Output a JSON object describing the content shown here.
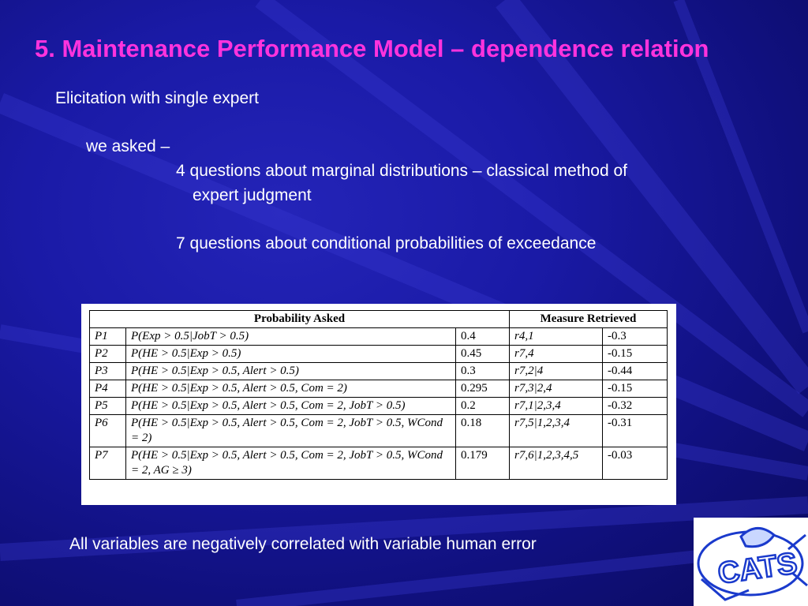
{
  "title": "5. Maintenance Performance Model – dependence relation",
  "subtitle": "Elicitation with single expert",
  "asked_label": "we asked –",
  "question_1_line1": "4 questions about marginal distributions – classical method of",
  "question_1_line2": "expert judgment",
  "question_2": "7 questions about conditional probabilities of exceedance",
  "footer": "All variables are negatively correlated with variable human error",
  "table": {
    "header_left": "Probability Asked",
    "header_right": "Measure Retrieved",
    "rows": [
      {
        "id": "P1",
        "expr": "P(Exp > 0.5|JobT > 0.5)",
        "value": "0.4",
        "measure": "r4,1",
        "coef": "-0.3"
      },
      {
        "id": "P2",
        "expr": "P(HE > 0.5|Exp > 0.5)",
        "value": "0.45",
        "measure": "r7,4",
        "coef": "-0.15"
      },
      {
        "id": "P3",
        "expr": "P(HE > 0.5|Exp > 0.5, Alert > 0.5)",
        "value": "0.3",
        "measure": "r7,2|4",
        "coef": "-0.44"
      },
      {
        "id": "P4",
        "expr": "P(HE > 0.5|Exp > 0.5, Alert > 0.5, Com = 2)",
        "value": "0.295",
        "measure": "r7,3|2,4",
        "coef": "-0.15"
      },
      {
        "id": "P5",
        "expr": "P(HE > 0.5|Exp > 0.5, Alert > 0.5, Com = 2, JobT > 0.5)",
        "value": "0.2",
        "measure": "r7,1|2,3,4",
        "coef": "-0.32"
      },
      {
        "id": "P6",
        "expr": "P(HE > 0.5|Exp > 0.5, Alert > 0.5, Com = 2, JobT > 0.5, WCond = 2)",
        "value": "0.18",
        "measure": "r7,5|1,2,3,4",
        "coef": "-0.31"
      },
      {
        "id": "P7",
        "expr": "P(HE > 0.5|Exp > 0.5, Alert > 0.5, Com = 2, JobT > 0.5, WCond = 2, AG ≥ 3)",
        "value": "0.179",
        "measure": "r7,6|1,2,3,4,5",
        "coef": "-0.03"
      }
    ]
  },
  "logo_label": "CATS",
  "colors": {
    "background": "#1a1aa6",
    "title": "#ff33dd",
    "text": "#ffffff",
    "logo_bg": "#ffffff",
    "logo_ink": "#1a3acc"
  }
}
